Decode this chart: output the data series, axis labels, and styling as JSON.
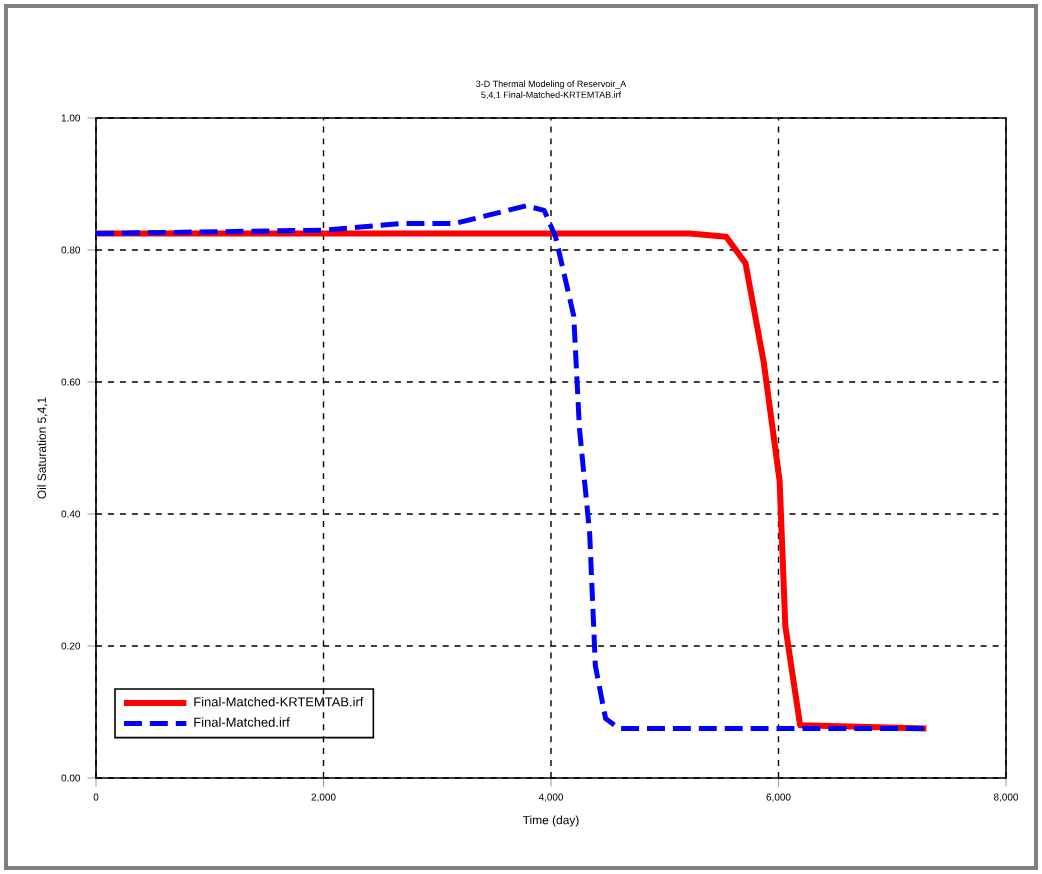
{
  "chart_data": {
    "type": "line",
    "title": "3-D Thermal Modeling of Reservoir_A",
    "subtitle": "5,4,1 Final-Matched-KRTEMTAB.irf",
    "xlabel": "Time (day)",
    "ylabel": "Oil Saturation  5,4,1",
    "xlim": [
      0,
      8000
    ],
    "ylim": [
      0,
      1
    ],
    "xticks": [
      0,
      {
        "value": 2000,
        "label": "2,000"
      },
      {
        "value": 4000,
        "label": "4,000"
      },
      {
        "value": 6000,
        "label": "6,000"
      },
      {
        "value": 8000,
        "label": "8,000"
      }
    ],
    "yticks": [
      {
        "value": 0,
        "label": "0.00"
      },
      {
        "value": 0.2,
        "label": "0.20"
      },
      {
        "value": 0.4,
        "label": "0.40"
      },
      {
        "value": 0.6,
        "label": "0.60"
      },
      {
        "value": 0.8,
        "label": "0.80"
      },
      {
        "value": 1,
        "label": "1.00"
      }
    ],
    "grid": true,
    "legend": "bottom left",
    "series": [
      {
        "name": "Final-Matched-KRTEMTAB.irf",
        "color": "#ff0000",
        "line_style": "solid",
        "x": [
          0,
          5220,
          5540,
          5710,
          5870,
          6010,
          6060,
          6190,
          7300
        ],
        "values": [
          0.825,
          0.825,
          0.82,
          0.78,
          0.63,
          0.45,
          0.23,
          0.08,
          0.075
        ]
      },
      {
        "name": "Final-Matched.irf",
        "color": "#0000ff",
        "line_style": "dashed",
        "x": [
          0,
          2000,
          2670,
          3150,
          3780,
          3940,
          4040,
          4200,
          4250,
          4340,
          4390,
          4480,
          4600,
          7300
        ],
        "values": [
          0.825,
          0.83,
          0.84,
          0.84,
          0.867,
          0.86,
          0.82,
          0.7,
          0.53,
          0.37,
          0.17,
          0.09,
          0.075,
          0.075
        ]
      }
    ]
  }
}
